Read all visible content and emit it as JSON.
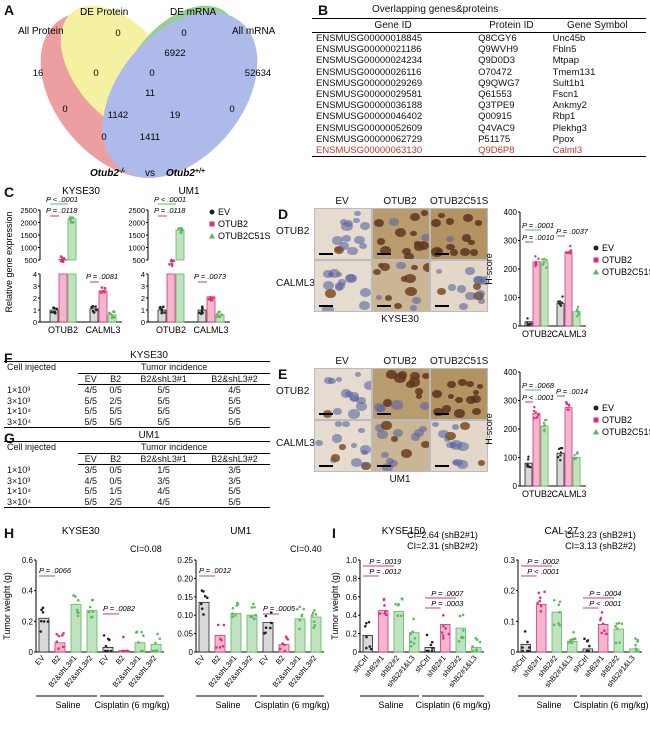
{
  "panels": {
    "A": "A",
    "B": "B",
    "C": "C",
    "D": "D",
    "E": "E",
    "F": "F",
    "G": "G",
    "H": "H",
    "I": "I"
  },
  "venn": {
    "sets": [
      "All Protein",
      "DE Protein",
      "DE mRNA",
      "All mRNA"
    ],
    "numbers": {
      "n0a": "0",
      "n0b": "0",
      "n16": "16",
      "n6922": "6922",
      "n52634": "52634",
      "n0c": "0",
      "n0d": "0",
      "n11": "11",
      "n0e": "0",
      "n0f": "0",
      "n1142": "1142",
      "n19": "19",
      "n1411": "1411",
      "n0g": "0"
    },
    "caption_left": "Otub2",
    "caption_left_sup": "-/-",
    "caption_vs": "vs",
    "caption_right": "Otub2",
    "caption_right_sup": "+/+",
    "colors": {
      "all_protein": "#e8868a",
      "de_protein": "#f2ee8a",
      "de_mrna": "#7dc47d",
      "all_mrna": "#9aa9e6"
    }
  },
  "table_b": {
    "title": "Overlapping genes&proteins",
    "headers": [
      "Gene ID",
      "Protein ID",
      "Gene Symbol"
    ],
    "rows": [
      [
        "ENSMUSG00000018845",
        "Q8CGY6",
        "Unc45b"
      ],
      [
        "ENSMUSG00000021186",
        "Q9WVH9",
        "Fbln5"
      ],
      [
        "ENSMUSG00000024234",
        "Q9D0D3",
        "Mtpap"
      ],
      [
        "ENSMUSG00000026116",
        "O70472",
        "Tmem131"
      ],
      [
        "ENSMUSG00000029269",
        "Q9QWG7",
        "Sult1b1"
      ],
      [
        "ENSMUSG00000029581",
        "Q61553",
        "Fscn1"
      ],
      [
        "ENSMUSG00000036188",
        "Q3TPE9",
        "Ankmy2"
      ],
      [
        "ENSMUSG00000046402",
        "Q00915",
        "Rbp1"
      ],
      [
        "ENSMUSG00000052609",
        "Q4VAC9",
        "Plekhg3"
      ],
      [
        "ENSMUSG00000062729",
        "P51175",
        "Ppox"
      ],
      [
        "ENSMUSG00000063130",
        "Q9D6P8",
        "Calml3"
      ]
    ],
    "highlight_color": "#c0392b"
  },
  "panel_c": {
    "ylabel": "Relative gene expression",
    "legend": [
      "EV",
      "OTUB2",
      "OTUB2C51S"
    ],
    "legend_sup": "C51S",
    "charts": [
      {
        "title": "KYSE30",
        "categories": [
          "OTUB2",
          "CALML3"
        ],
        "p_top": [
          "P < .0001",
          "P = .0118"
        ],
        "p_low": "P = .0081",
        "upper_ticks": [
          "2500",
          "2000",
          "1500",
          "1000",
          "500"
        ],
        "lower_ticks": [
          "4",
          "3",
          "2",
          "1",
          "0"
        ]
      },
      {
        "title": "UM1",
        "categories": [
          "OTUB2",
          "CALML3"
        ],
        "p_top": [
          "P < .0001",
          "P = .0118"
        ],
        "p_low": "P = .0073",
        "upper_ticks": [
          "2500",
          "2000",
          "1500",
          "1000",
          "500"
        ],
        "lower_ticks": [
          "4",
          "3",
          "2",
          "1",
          "0"
        ]
      }
    ]
  },
  "chart_data": [
    {
      "type": "bar",
      "title": "KYSE30",
      "categories": [
        "OTUB2",
        "CALML3"
      ],
      "ylabel": "Relative gene expression",
      "series": [
        {
          "name": "EV",
          "values": [
            1,
            1.1
          ]
        },
        {
          "name": "OTUB2",
          "values": [
            520,
            2.6
          ]
        },
        {
          "name": "OTUB2C51S",
          "values": [
            2150,
            0.6
          ]
        }
      ]
    },
    {
      "type": "bar",
      "title": "UM1",
      "categories": [
        "OTUB2",
        "CALML3"
      ],
      "ylabel": "Relative gene expression",
      "series": [
        {
          "name": "EV",
          "values": [
            1,
            1.0
          ]
        },
        {
          "name": "OTUB2",
          "values": [
            400,
            2.1
          ]
        },
        {
          "name": "OTUB2C51S",
          "values": [
            1700,
            0.6
          ]
        }
      ]
    },
    {
      "type": "bar",
      "title": "KYSE30",
      "categories": [
        "OTUB2",
        "CALML3"
      ],
      "ylabel": "H-score",
      "ylim": [
        0,
        400
      ],
      "series": [
        {
          "name": "EV",
          "values": [
            15,
            80
          ]
        },
        {
          "name": "OTUB2",
          "values": [
            225,
            260
          ]
        },
        {
          "name": "OTUB2C51S",
          "values": [
            225,
            50
          ]
        }
      ]
    },
    {
      "type": "bar",
      "title": "UM1",
      "categories": [
        "OTUB2",
        "CALML3"
      ],
      "ylabel": "H-score",
      "ylim": [
        0,
        400
      ],
      "series": [
        {
          "name": "EV",
          "values": [
            80,
            115
          ]
        },
        {
          "name": "OTUB2",
          "values": [
            255,
            275
          ]
        },
        {
          "name": "OTUB2C51S",
          "values": [
            210,
            100
          ]
        }
      ]
    },
    {
      "type": "bar",
      "title": "KYSE30",
      "ylabel": "Tumor weight (g)",
      "ylim": [
        0,
        0.6
      ],
      "categories": [
        "EV",
        "B2",
        "B2&shL3#1",
        "B2&shL3#2",
        "EV",
        "B2",
        "B2&shL3#1",
        "B2&shL3#2"
      ],
      "values": [
        0.22,
        0.06,
        0.31,
        0.27,
        0.03,
        0.01,
        0.06,
        0.05
      ]
    },
    {
      "type": "bar",
      "title": "UM1",
      "ylabel": "Tumor weight (g)",
      "ylim": [
        0,
        0.25
      ],
      "categories": [
        "EV",
        "B2",
        "B2&shL3#1",
        "B2&shL3#2",
        "EV",
        "B2",
        "B2&shL3#1",
        "B2&shL3#2"
      ],
      "values": [
        0.135,
        0.045,
        0.105,
        0.1,
        0.08,
        0.02,
        0.09,
        0.095
      ]
    },
    {
      "type": "bar",
      "title": "KYSE150",
      "ylabel": "Tumor weight (g)",
      "ylim": [
        0,
        1.0
      ],
      "categories": [
        "shCtrl",
        "shB2#1",
        "shB2#2",
        "shB2#1&L3",
        "shCtrl",
        "shB2#1",
        "shB2#2",
        "shB2#1&L3"
      ],
      "values": [
        0.18,
        0.45,
        0.44,
        0.21,
        0.05,
        0.3,
        0.26,
        0.05
      ]
    },
    {
      "type": "bar",
      "title": "CAL-27",
      "ylabel": "Tumor weight (g)",
      "ylim": [
        0,
        0.3
      ],
      "categories": [
        "shCtrl",
        "shB2#1",
        "shB2#2",
        "shB2#1&L3",
        "shCtrl",
        "shB2#1",
        "shB2#2",
        "shB2#1&L3"
      ],
      "values": [
        0.025,
        0.155,
        0.13,
        0.035,
        0.01,
        0.09,
        0.075,
        0.01
      ]
    }
  ],
  "panel_d": {
    "conds": [
      "EV",
      "OTUB2",
      "OTUB2C51S"
    ],
    "rows": [
      "OTUB2",
      "CALML3"
    ],
    "caption": "KYSE30",
    "ylabel": "H-score",
    "ticks": [
      "400",
      "300",
      "200",
      "100",
      "0"
    ],
    "p": [
      "P = .0001",
      "P = .0010",
      "P = .0037"
    ],
    "categories": [
      "OTUB2",
      "CALML3"
    ],
    "legend": [
      "EV",
      "OTUB2",
      "OTUB2C51S"
    ]
  },
  "panel_e": {
    "conds": [
      "EV",
      "OTUB2",
      "OTUB2C51S"
    ],
    "rows": [
      "OTUB2",
      "CALML3"
    ],
    "caption": "UM1",
    "ylabel": "H-score",
    "ticks": [
      "400",
      "300",
      "200",
      "100",
      "0"
    ],
    "p": [
      "P = .0068",
      "P < .0001",
      "P = .0014"
    ],
    "categories": [
      "OTUB2",
      "CALML3"
    ],
    "legend": [
      "EV",
      "OTUB2",
      "OTUB2C51S"
    ]
  },
  "panel_f": {
    "title": "KYSE30",
    "h1": "Cell injected",
    "h2": "Tumor incidence",
    "cols": [
      "EV",
      "B2",
      "B2&shL3#1",
      "B2&shL3#2"
    ],
    "rows": [
      [
        "1×10³",
        "4/5",
        "0/5",
        "5/5",
        "4/5"
      ],
      [
        "3×10³",
        "5/5",
        "2/5",
        "5/5",
        "5/5"
      ],
      [
        "1×10⁴",
        "5/5",
        "5/5",
        "5/5",
        "5/5"
      ],
      [
        "3×10⁴",
        "5/5",
        "5/5",
        "5/5",
        "5/5"
      ]
    ]
  },
  "panel_g": {
    "title": "UM1",
    "h1": "Cell injected",
    "h2": "Tumor incidence",
    "cols": [
      "EV",
      "B2",
      "B2&shL3#1",
      "B2&shL3#2"
    ],
    "rows": [
      [
        "1×10³",
        "3/5",
        "0/5",
        "1/5",
        "3/5"
      ],
      [
        "3×10³",
        "4/5",
        "0/5",
        "3/5",
        "3/5"
      ],
      [
        "1×10⁴",
        "5/5",
        "1/5",
        "4/5",
        "5/5"
      ],
      [
        "3×10⁴",
        "5/5",
        "2/5",
        "4/5",
        "5/5"
      ]
    ]
  },
  "panel_h": {
    "charts": [
      {
        "title": "KYSE30",
        "ci": "CI=0.08",
        "ticks": [
          "0.6",
          "0.4",
          "0.2",
          "0"
        ],
        "p": [
          "P = .0066",
          "P = .0082"
        ],
        "labels": [
          "EV",
          "B2",
          "B2&shL3#1",
          "B2&shL3#2",
          "EV",
          "B2",
          "B2&shL3#1",
          "B2&shL3#2"
        ],
        "g1": "Saline",
        "g2": "Cisplatin (6 mg/kg)"
      },
      {
        "title": "UM1",
        "ci": "CI=0.40",
        "ticks": [
          "0.25",
          "0.20",
          "0.15",
          "0.10",
          "0.05",
          "0"
        ],
        "p": [
          "P = .0012",
          "P = .0005"
        ],
        "labels": [
          "EV",
          "B2",
          "B2&shL3#1",
          "B2&shL3#2",
          "EV",
          "B2",
          "B2&shL3#1",
          "B2&shL3#2"
        ],
        "g1": "Saline",
        "g2": "Cisplatin (6 mg/kg)"
      }
    ],
    "ylabel": "Tumor weight (g)"
  },
  "panel_i": {
    "charts": [
      {
        "title": "KYSE150",
        "ci1": "CI=2.64 (shB2#1)",
        "ci2": "CI=2.31 (shB2#2)",
        "ticks": [
          "1.0",
          "0.8",
          "0.6",
          "0.4",
          "0.2",
          "0"
        ],
        "p": [
          "P = .0019",
          "P = .0012",
          "P = .0007",
          "P = .0003"
        ],
        "labels": [
          "shCtrl",
          "shB2#1",
          "shB2#2",
          "shB2#1&L3",
          "shCtrl",
          "shB2#1",
          "shB2#2",
          "shB2#1&L3"
        ],
        "g1": "Saline",
        "g2": "Cisplatin (6 mg/kg)"
      },
      {
        "title": "CAL-27",
        "ci1": "CI=3.23 (shB2#1)",
        "ci2": "CI=3.13 (shB2#2)",
        "ticks": [
          "0.3",
          "0.2",
          "0.1",
          "0"
        ],
        "p": [
          "P = .0002",
          "P < .0001",
          "P = .0004",
          "P < .0001"
        ],
        "labels": [
          "shCtrl",
          "shB2#1",
          "shB2#2",
          "shB2#1&L3",
          "shCtrl",
          "shB2#1",
          "shB2#2",
          "shB2#1&L3"
        ],
        "g1": "Saline",
        "g2": "Cisplatin (6 mg/kg)"
      }
    ],
    "ylabel": "Tumor weight (g)"
  }
}
